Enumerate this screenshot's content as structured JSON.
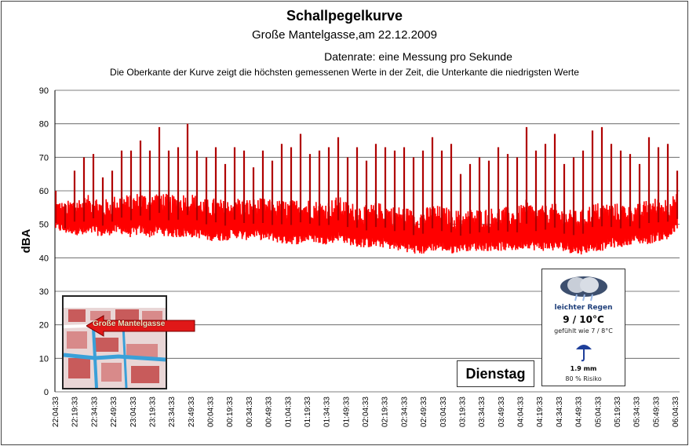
{
  "title": "Schallpegelkurve",
  "subtitle": "Große Mantelgasse,am 22.12.2009",
  "data_rate": "Datenrate: eine Messung pro Sekunde",
  "note": "Die Oberkante der Kurve zeigt die höchsten  gemessenen Werte  in der Zeit, die Unterkante  die niedrigsten Werte",
  "day_label": "Dienstag",
  "map_label": "Große Mantelgasse",
  "weather": {
    "icon": "rain-cloud-icon",
    "condition": "leichter Regen",
    "temp": "9 / 10°C",
    "felt": "gefühlt wie 7 / 8°C",
    "rain_icon": "umbrella-icon",
    "precip": "1.9 mm",
    "risk": "80 % Risiko"
  },
  "colors": {
    "series": "#ff0000",
    "series_dark": "#b00000",
    "grid": "#000000"
  },
  "chart_data": {
    "type": "area",
    "title": "Schallpegelkurve",
    "subtitle": "Große Mantelgasse,am 22.12.2009",
    "ylabel": "dBA",
    "xlabel": "",
    "ylim": [
      0,
      90
    ],
    "yticks": [
      0,
      10,
      20,
      30,
      40,
      50,
      60,
      70,
      80,
      90
    ],
    "grid": true,
    "legend": "none",
    "x_ticks": [
      "22:04:33",
      "22:19:33",
      "22:34:33",
      "22:49:33",
      "23:04:33",
      "23:19:33",
      "23:34:33",
      "23:49:33",
      "00:04:33",
      "00:19:33",
      "00:34:33",
      "00:49:33",
      "01:04:33",
      "01:19:33",
      "01:34:33",
      "01:49:33",
      "02:04:33",
      "02:19:33",
      "02:34:33",
      "02:49:33",
      "03:04:33",
      "03:19:33",
      "03:34:33",
      "03:49:33",
      "04:04:33",
      "04:19:33",
      "04:34:33",
      "04:49:33",
      "05:04:33",
      "05:19:33",
      "05:34:33",
      "05:49:33",
      "06:04:33"
    ],
    "series": [
      {
        "max": [
          60,
          56,
          66,
          70,
          71,
          64,
          66,
          72,
          72,
          75,
          72,
          79,
          72,
          73,
          80,
          72,
          70,
          73,
          68,
          73,
          72,
          67,
          72,
          69,
          74,
          73,
          77,
          71,
          72,
          73,
          76,
          70,
          73,
          69,
          74,
          73,
          72,
          73,
          70,
          72,
          76,
          72,
          74,
          65,
          68,
          70,
          69,
          73,
          71,
          70,
          79,
          72,
          74,
          77,
          68,
          70,
          72,
          78,
          79,
          74,
          72,
          71,
          68,
          76,
          73,
          74,
          66
        ],
        "min": [
          48,
          47,
          47,
          46,
          47,
          46,
          47,
          47,
          46,
          47,
          46,
          47,
          46,
          46,
          46,
          46,
          45,
          45,
          45,
          46,
          45,
          46,
          45,
          45,
          44,
          44,
          44,
          45,
          44,
          44,
          45,
          44,
          43,
          43,
          43,
          43,
          42,
          42,
          41,
          41,
          42,
          42,
          41,
          42,
          42,
          42,
          42,
          42,
          42,
          42,
          43,
          42,
          42,
          42,
          42,
          41,
          41,
          42,
          42,
          43,
          43,
          44,
          44,
          44,
          45,
          45,
          48
        ]
      }
    ]
  }
}
